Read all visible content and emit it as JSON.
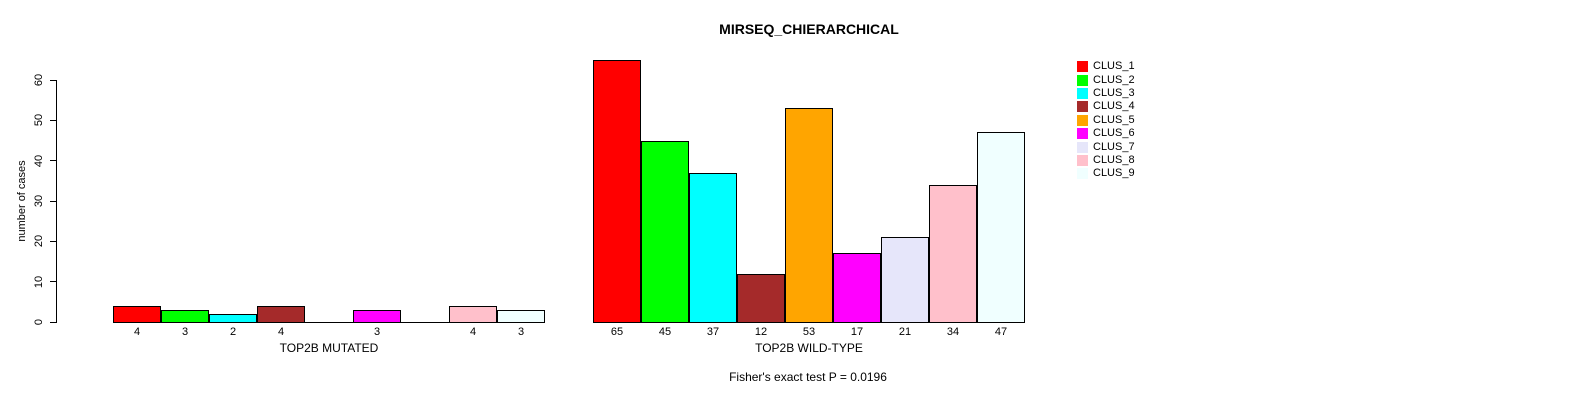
{
  "chart_data": {
    "type": "bar",
    "title": "MIRSEQ_CHIERARCHICAL",
    "ylabel": "number of cases",
    "ylim": [
      0,
      60
    ],
    "yticks": [
      0,
      10,
      20,
      30,
      40,
      50,
      60
    ],
    "grid": false,
    "legend_position": "right-outside",
    "annotation": "Fisher's exact test P = 0.0196",
    "clusters": [
      {
        "label": "CLUS_1",
        "color": "#FF0000"
      },
      {
        "label": "CLUS_2",
        "color": "#00FF00"
      },
      {
        "label": "CLUS_3",
        "color": "#00FFFF"
      },
      {
        "label": "CLUS_4",
        "color": "#A52A2A"
      },
      {
        "label": "CLUS_5",
        "color": "#FFA500"
      },
      {
        "label": "CLUS_6",
        "color": "#FF00FF"
      },
      {
        "label": "CLUS_7",
        "color": "#E6E6FA"
      },
      {
        "label": "CLUS_8",
        "color": "#FFC0CB"
      },
      {
        "label": "CLUS_9",
        "color": "#F0FFFF"
      }
    ],
    "groups": [
      {
        "label": "TOP2B MUTATED",
        "values": [
          4,
          3,
          2,
          4,
          0,
          3,
          0,
          4,
          3
        ]
      },
      {
        "label": "TOP2B WILD-TYPE",
        "values": [
          65,
          45,
          37,
          12,
          53,
          17,
          21,
          34,
          47
        ]
      }
    ],
    "value_label_rule": "values shown under each bar; zero-value bars drawn as flat line with no label"
  }
}
